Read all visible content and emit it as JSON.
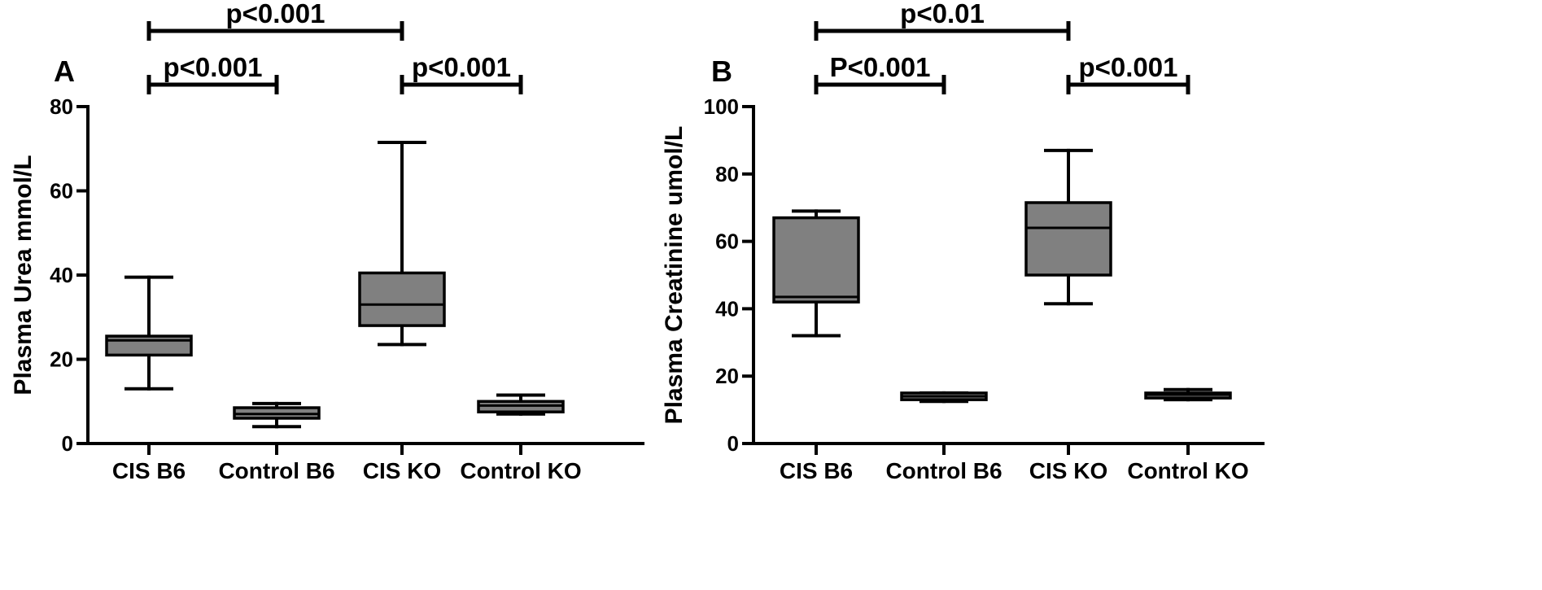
{
  "chart_data": [
    {
      "type": "box",
      "panel_label": "A",
      "ylabel": "Plasma Urea mmol/L",
      "ylim": [
        0,
        80
      ],
      "yticks": [
        0,
        20,
        40,
        60,
        80
      ],
      "categories": [
        "CIS B6",
        "Control B6",
        "CIS KO",
        "Control KO"
      ],
      "fill_color": "#808080",
      "boxes": [
        {
          "min": 13,
          "q1": 21,
          "median": 24.5,
          "q3": 25.5,
          "max": 39.5
        },
        {
          "min": 4,
          "q1": 6,
          "median": 7,
          "q3": 8.5,
          "max": 9.5
        },
        {
          "min": 23.5,
          "q1": 28,
          "median": 33,
          "q3": 40.5,
          "max": 71.5
        },
        {
          "min": 7,
          "q1": 7.5,
          "median": 9,
          "q3": 10,
          "max": 11.5
        }
      ],
      "comparisons": [
        {
          "from": 0,
          "to": 2,
          "label": "p<0.001",
          "level": 2
        },
        {
          "from": 0,
          "to": 1,
          "label": "p<0.001",
          "level": 1
        },
        {
          "from": 2,
          "to": 3,
          "label": "p<0.001",
          "level": 1
        }
      ]
    },
    {
      "type": "box",
      "panel_label": "B",
      "ylabel": "Plasma Creatinine umol/L",
      "ylim": [
        0,
        100
      ],
      "yticks": [
        0,
        20,
        40,
        60,
        80,
        100
      ],
      "categories": [
        "CIS B6",
        "Control B6",
        "CIS KO",
        "Control KO"
      ],
      "fill_color": "#808080",
      "boxes": [
        {
          "min": 32,
          "q1": 42,
          "median": 43.5,
          "q3": 67,
          "max": 69
        },
        {
          "min": 12.5,
          "q1": 13,
          "median": 14,
          "q3": 15,
          "max": 15
        },
        {
          "min": 41.5,
          "q1": 50,
          "median": 64,
          "q3": 71.5,
          "max": 87
        },
        {
          "min": 13,
          "q1": 13.5,
          "median": 14.5,
          "q3": 15,
          "max": 16
        }
      ],
      "comparisons": [
        {
          "from": 0,
          "to": 2,
          "label": "p<0.01",
          "level": 2
        },
        {
          "from": 0,
          "to": 1,
          "label": "P<0.001",
          "level": 1
        },
        {
          "from": 2,
          "to": 3,
          "label": "p<0.001",
          "level": 1
        }
      ]
    }
  ]
}
